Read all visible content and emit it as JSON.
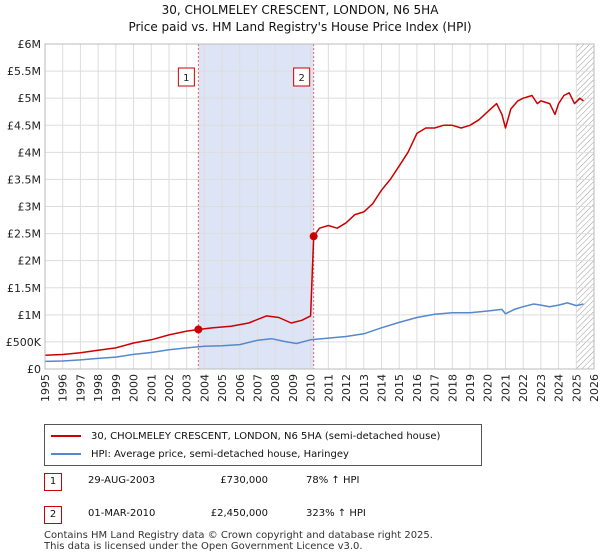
{
  "chart_data": {
    "type": "line",
    "title": "30, CHOLMELEY CRESCENT, LONDON, N6 5HA",
    "subtitle": "Price paid vs. HM Land Registry's House Price Index (HPI)",
    "xlabel": "",
    "ylabel": "",
    "xlim": [
      1995,
      2026
    ],
    "ylim": [
      0,
      6000000
    ],
    "x_ticks": [
      "1995",
      "1996",
      "1997",
      "1998",
      "1999",
      "2000",
      "2001",
      "2002",
      "2003",
      "2004",
      "2005",
      "2006",
      "2007",
      "2008",
      "2009",
      "2010",
      "2011",
      "2012",
      "2013",
      "2014",
      "2015",
      "2016",
      "2017",
      "2018",
      "2019",
      "2020",
      "2021",
      "2022",
      "2023",
      "2024",
      "2025",
      "2026"
    ],
    "y_ticks": [
      {
        "value": 0,
        "label": "£0"
      },
      {
        "value": 500000,
        "label": "£500K"
      },
      {
        "value": 1000000,
        "label": "£1M"
      },
      {
        "value": 1500000,
        "label": "£1.5M"
      },
      {
        "value": 2000000,
        "label": "£2M"
      },
      {
        "value": 2500000,
        "label": "£2.5M"
      },
      {
        "value": 3000000,
        "label": "£3M"
      },
      {
        "value": 3500000,
        "label": "£3.5M"
      },
      {
        "value": 4000000,
        "label": "£4M"
      },
      {
        "value": 4500000,
        "label": "£4.5M"
      },
      {
        "value": 5000000,
        "label": "£5M"
      },
      {
        "value": 5500000,
        "label": "£5.5M"
      },
      {
        "value": 6000000,
        "label": "£6M"
      }
    ],
    "grid": true,
    "shaded_period": [
      2003.66,
      2010.17
    ],
    "forecast_from": 2025.0,
    "series": [
      {
        "name": "30, CHOLMELEY CRESCENT, LONDON, N6 5HA (semi-detached house)",
        "color": "#cc0000",
        "points": [
          [
            1995.0,
            255000
          ],
          [
            1996.0,
            268000
          ],
          [
            1997.0,
            300000
          ],
          [
            1998.0,
            345000
          ],
          [
            1999.0,
            390000
          ],
          [
            2000.0,
            480000
          ],
          [
            2001.0,
            540000
          ],
          [
            2002.0,
            630000
          ],
          [
            2003.0,
            700000
          ],
          [
            2003.66,
            730000
          ],
          [
            2004.5,
            760000
          ],
          [
            2005.5,
            790000
          ],
          [
            2006.5,
            850000
          ],
          [
            2007.5,
            980000
          ],
          [
            2008.2,
            950000
          ],
          [
            2008.9,
            850000
          ],
          [
            2009.5,
            900000
          ],
          [
            2010.0,
            980000
          ],
          [
            2010.17,
            2450000
          ],
          [
            2010.5,
            2600000
          ],
          [
            2011.0,
            2650000
          ],
          [
            2011.5,
            2600000
          ],
          [
            2012.0,
            2700000
          ],
          [
            2012.5,
            2850000
          ],
          [
            2013.0,
            2900000
          ],
          [
            2013.5,
            3050000
          ],
          [
            2014.0,
            3300000
          ],
          [
            2014.5,
            3500000
          ],
          [
            2015.0,
            3750000
          ],
          [
            2015.5,
            4000000
          ],
          [
            2016.0,
            4350000
          ],
          [
            2016.5,
            4450000
          ],
          [
            2017.0,
            4450000
          ],
          [
            2017.5,
            4500000
          ],
          [
            2018.0,
            4500000
          ],
          [
            2018.5,
            4450000
          ],
          [
            2019.0,
            4500000
          ],
          [
            2019.5,
            4600000
          ],
          [
            2020.0,
            4750000
          ],
          [
            2020.5,
            4900000
          ],
          [
            2020.8,
            4700000
          ],
          [
            2021.0,
            4450000
          ],
          [
            2021.3,
            4800000
          ],
          [
            2021.7,
            4950000
          ],
          [
            2022.0,
            5000000
          ],
          [
            2022.5,
            5050000
          ],
          [
            2022.8,
            4900000
          ],
          [
            2023.0,
            4950000
          ],
          [
            2023.5,
            4900000
          ],
          [
            2023.8,
            4700000
          ],
          [
            2024.0,
            4900000
          ],
          [
            2024.3,
            5050000
          ],
          [
            2024.6,
            5100000
          ],
          [
            2024.9,
            4900000
          ],
          [
            2025.2,
            5000000
          ],
          [
            2025.4,
            4950000
          ]
        ]
      },
      {
        "name": "HPI: Average price, semi-detached house, Haringey",
        "color": "#5588cc",
        "points": [
          [
            1995.0,
            140000
          ],
          [
            1996.0,
            148000
          ],
          [
            1997.0,
            168000
          ],
          [
            1998.0,
            195000
          ],
          [
            1999.0,
            220000
          ],
          [
            2000.0,
            270000
          ],
          [
            2001.0,
            305000
          ],
          [
            2002.0,
            355000
          ],
          [
            2003.0,
            390000
          ],
          [
            2004.0,
            420000
          ],
          [
            2005.0,
            430000
          ],
          [
            2006.0,
            450000
          ],
          [
            2007.0,
            530000
          ],
          [
            2007.8,
            560000
          ],
          [
            2008.5,
            510000
          ],
          [
            2009.2,
            470000
          ],
          [
            2010.0,
            540000
          ],
          [
            2011.0,
            570000
          ],
          [
            2012.0,
            600000
          ],
          [
            2013.0,
            650000
          ],
          [
            2014.0,
            760000
          ],
          [
            2015.0,
            860000
          ],
          [
            2016.0,
            950000
          ],
          [
            2017.0,
            1010000
          ],
          [
            2018.0,
            1040000
          ],
          [
            2019.0,
            1040000
          ],
          [
            2020.0,
            1070000
          ],
          [
            2020.8,
            1100000
          ],
          [
            2021.0,
            1020000
          ],
          [
            2021.5,
            1100000
          ],
          [
            2022.0,
            1150000
          ],
          [
            2022.6,
            1200000
          ],
          [
            2023.0,
            1180000
          ],
          [
            2023.5,
            1150000
          ],
          [
            2024.0,
            1180000
          ],
          [
            2024.5,
            1220000
          ],
          [
            2025.0,
            1170000
          ],
          [
            2025.4,
            1200000
          ]
        ]
      }
    ],
    "sales": [
      {
        "id": "1",
        "x": 2003.66,
        "y": 730000
      },
      {
        "id": "2",
        "x": 2010.17,
        "y": 2450000
      }
    ]
  },
  "header": {
    "title": "30, CHOLMELEY CRESCENT, LONDON, N6 5HA",
    "subtitle": "Price paid vs. HM Land Registry's House Price Index (HPI)"
  },
  "legend": {
    "property_label": "30, CHOLMELEY CRESCENT, LONDON, N6 5HA (semi-detached house)",
    "hpi_label": "HPI: Average price, semi-detached house, Haringey"
  },
  "sales_table": [
    {
      "id": "1",
      "date": "29-AUG-2003",
      "price": "£730,000",
      "hpi": "78% ↑ HPI"
    },
    {
      "id": "2",
      "date": "01-MAR-2010",
      "price": "£2,450,000",
      "hpi": "323% ↑ HPI"
    }
  ],
  "footer": {
    "line1": "Contains HM Land Registry data © Crown copyright and database right 2025.",
    "line2": "This data is licensed under the Open Government Licence v3.0."
  }
}
